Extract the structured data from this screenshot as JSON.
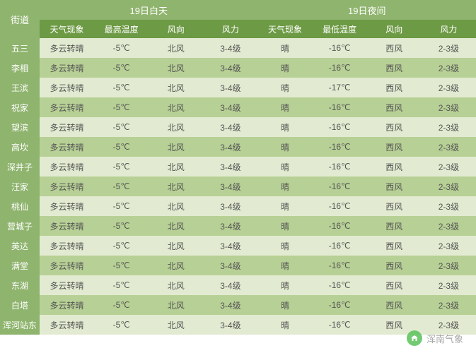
{
  "colors": {
    "header_top_bg": "#8fb46e",
    "header_sub_bg": "#6d9a44",
    "row_odd_bg": "#e2ebd1",
    "row_even_bg": "#b7d095",
    "street_bg": "#8fb46e",
    "header_text": "#ffffff",
    "body_text": "#555555"
  },
  "header": {
    "street": "街道",
    "day_group": "19日白天",
    "night_group": "19日夜间",
    "sub": {
      "phenomenon_day": "天气现象",
      "high_temp": "最高温度",
      "wind_dir_day": "风向",
      "wind_force_day": "风力",
      "phenomenon_night": "天气现象",
      "low_temp": "最低温度",
      "wind_dir_night": "风向",
      "wind_force_night": "风力"
    }
  },
  "rows": [
    {
      "street": "五三",
      "d_ph": "多云转晴",
      "hi": "-5℃",
      "d_wd": "北风",
      "d_wf": "3-4级",
      "n_ph": "晴",
      "lo": "-16℃",
      "n_wd": "西风",
      "n_wf": "2-3级"
    },
    {
      "street": "李相",
      "d_ph": "多云转晴",
      "hi": "-5℃",
      "d_wd": "北风",
      "d_wf": "3-4级",
      "n_ph": "晴",
      "lo": "-16℃",
      "n_wd": "西风",
      "n_wf": "2-3级"
    },
    {
      "street": "王滨",
      "d_ph": "多云转晴",
      "hi": "-5℃",
      "d_wd": "北风",
      "d_wf": "3-4级",
      "n_ph": "晴",
      "lo": "-17℃",
      "n_wd": "西风",
      "n_wf": "2-3级"
    },
    {
      "street": "祝家",
      "d_ph": "多云转晴",
      "hi": "-5℃",
      "d_wd": "北风",
      "d_wf": "3-4级",
      "n_ph": "晴",
      "lo": "-16℃",
      "n_wd": "西风",
      "n_wf": "2-3级"
    },
    {
      "street": "望滨",
      "d_ph": "多云转晴",
      "hi": "-5℃",
      "d_wd": "北风",
      "d_wf": "3-4级",
      "n_ph": "晴",
      "lo": "-16℃",
      "n_wd": "西风",
      "n_wf": "2-3级"
    },
    {
      "street": "高坎",
      "d_ph": "多云转晴",
      "hi": "-5℃",
      "d_wd": "北风",
      "d_wf": "3-4级",
      "n_ph": "晴",
      "lo": "-16℃",
      "n_wd": "西风",
      "n_wf": "2-3级"
    },
    {
      "street": "深井子",
      "d_ph": "多云转晴",
      "hi": "-5℃",
      "d_wd": "北风",
      "d_wf": "3-4级",
      "n_ph": "晴",
      "lo": "-16℃",
      "n_wd": "西风",
      "n_wf": "2-3级"
    },
    {
      "street": "汪家",
      "d_ph": "多云转晴",
      "hi": "-5℃",
      "d_wd": "北风",
      "d_wf": "3-4级",
      "n_ph": "晴",
      "lo": "-16℃",
      "n_wd": "西风",
      "n_wf": "2-3级"
    },
    {
      "street": "桃仙",
      "d_ph": "多云转晴",
      "hi": "-5℃",
      "d_wd": "北风",
      "d_wf": "3-4级",
      "n_ph": "晴",
      "lo": "-16℃",
      "n_wd": "西风",
      "n_wf": "2-3级"
    },
    {
      "street": "营城子",
      "d_ph": "多云转晴",
      "hi": "-5℃",
      "d_wd": "北风",
      "d_wf": "3-4级",
      "n_ph": "晴",
      "lo": "-16℃",
      "n_wd": "西风",
      "n_wf": "2-3级"
    },
    {
      "street": "英达",
      "d_ph": "多云转晴",
      "hi": "-5℃",
      "d_wd": "北风",
      "d_wf": "3-4级",
      "n_ph": "晴",
      "lo": "-16℃",
      "n_wd": "西风",
      "n_wf": "2-3级"
    },
    {
      "street": "满堂",
      "d_ph": "多云转晴",
      "hi": "-5℃",
      "d_wd": "北风",
      "d_wf": "3-4级",
      "n_ph": "晴",
      "lo": "-16℃",
      "n_wd": "西风",
      "n_wf": "2-3级"
    },
    {
      "street": "东湖",
      "d_ph": "多云转晴",
      "hi": "-5℃",
      "d_wd": "北风",
      "d_wf": "3-4级",
      "n_ph": "晴",
      "lo": "-16℃",
      "n_wd": "西风",
      "n_wf": "2-3级"
    },
    {
      "street": "白塔",
      "d_ph": "多云转晴",
      "hi": "-5℃",
      "d_wd": "北风",
      "d_wf": "3-4级",
      "n_ph": "晴",
      "lo": "-16℃",
      "n_wd": "西风",
      "n_wf": "2-3级"
    },
    {
      "street": "浑河站东",
      "d_ph": "多云转晴",
      "hi": "-5℃",
      "d_wd": "北风",
      "d_wf": "3-4级",
      "n_ph": "晴",
      "lo": "-16℃",
      "n_wd": "西风",
      "n_wf": "2-3级"
    }
  ],
  "watermark": {
    "text": "浑南气象"
  }
}
